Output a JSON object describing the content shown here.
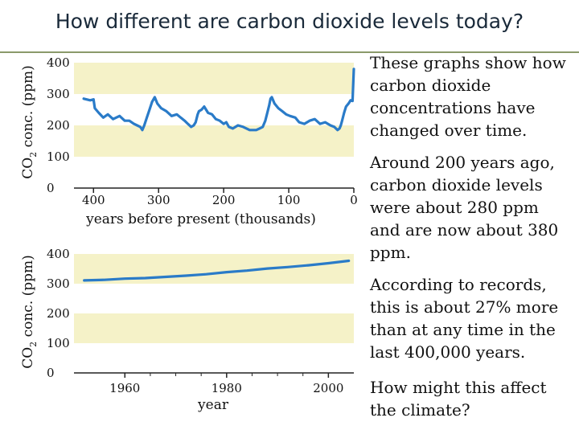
{
  "title": "How different are carbon dioxide levels today?",
  "colors": {
    "band": "#f5f2c8",
    "line": "#2a7bc8",
    "axis": "#222222"
  },
  "side_text": [
    "These graphs show how carbon dioxide concentrations have changed over time.",
    "Around 200 years ago, carbon dioxide levels were about 280 ppm and are now about 380 ppm.",
    "According to records, this is about 27% more than at any time in the last 400,000 years.",
    "How might this affect the climate?"
  ],
  "chart_data": [
    {
      "type": "line",
      "title": "",
      "xlabel": "years before present (thousands)",
      "ylabel": "CO2 conc. (ppm)",
      "ylabel_parts": [
        "CO",
        "2",
        " conc. (ppm)"
      ],
      "xlim": [
        430,
        0
      ],
      "ylim": [
        0,
        400
      ],
      "yticks": [
        0,
        100,
        200,
        300,
        400
      ],
      "ytick_labels": [
        "0",
        "100",
        "200",
        "300",
        "400"
      ],
      "xticks": [
        400,
        300,
        200,
        100,
        0
      ],
      "xtick_labels": [
        "400",
        "300",
        "200",
        "100",
        "0"
      ],
      "series": [
        {
          "x": [
            415,
            405,
            400,
            398,
            392,
            385,
            378,
            370,
            360,
            352,
            345,
            338,
            333,
            328,
            325,
            322,
            318,
            314,
            310,
            306,
            302,
            296,
            288,
            280,
            272,
            266,
            260,
            255,
            250,
            246,
            243,
            240,
            238,
            234,
            230,
            224,
            218,
            212,
            206,
            200,
            196,
            192,
            186,
            178,
            170,
            160,
            150,
            145,
            140,
            136,
            133,
            130,
            128,
            126,
            122,
            116,
            110,
            104,
            98,
            90,
            84,
            76,
            68,
            60,
            52,
            44,
            36,
            30,
            25,
            22,
            20,
            18,
            15,
            12,
            8,
            5,
            2,
            0
          ],
          "y": [
            285,
            280,
            283,
            255,
            240,
            225,
            235,
            220,
            230,
            215,
            215,
            205,
            200,
            195,
            185,
            200,
            225,
            250,
            275,
            290,
            270,
            255,
            245,
            230,
            235,
            225,
            215,
            205,
            195,
            200,
            210,
            235,
            245,
            250,
            260,
            240,
            235,
            220,
            215,
            205,
            210,
            195,
            190,
            200,
            195,
            185,
            185,
            190,
            195,
            215,
            240,
            265,
            285,
            290,
            270,
            255,
            245,
            235,
            230,
            225,
            210,
            205,
            215,
            220,
            205,
            210,
            200,
            195,
            185,
            190,
            200,
            215,
            240,
            260,
            270,
            280,
            278,
            380
          ]
        }
      ]
    },
    {
      "type": "line",
      "title": "",
      "xlabel": "year",
      "ylabel": "CO2 conc. (ppm)",
      "ylabel_parts": [
        "CO",
        "2",
        " conc. (ppm)"
      ],
      "xlim": [
        1950,
        2005
      ],
      "ylim": [
        0,
        400
      ],
      "yticks": [
        0,
        100,
        200,
        300,
        400
      ],
      "ytick_labels": [
        "0",
        "100",
        "200",
        "300",
        "400"
      ],
      "xticks": [
        1960,
        1980,
        2000
      ],
      "xtick_labels": [
        "1960",
        "1980",
        "2000"
      ],
      "series": [
        {
          "x": [
            1952,
            1956,
            1960,
            1964,
            1968,
            1972,
            1976,
            1980,
            1984,
            1988,
            1992,
            1996,
            2000,
            2004
          ],
          "y": [
            311,
            313,
            317,
            319,
            323,
            327,
            332,
            339,
            344,
            351,
            356,
            362,
            369,
            377
          ]
        }
      ]
    }
  ]
}
